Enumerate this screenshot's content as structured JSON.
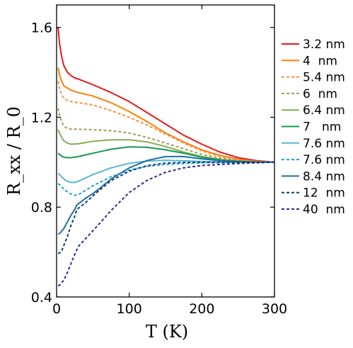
{
  "chart_data": {
    "type": "line",
    "xlabel": "T (K)",
    "ylabel": "R_xx / R_0",
    "xlim": [
      0,
      300
    ],
    "ylim": [
      0.4,
      1.7
    ],
    "xticks": [
      0,
      100,
      200,
      300
    ],
    "yticks": [
      0.4,
      0.8,
      1.2,
      1.6
    ],
    "xtick_labels": [
      "0",
      "100",
      "200",
      "300"
    ],
    "ytick_labels": [
      "0.4",
      "0.8",
      "1.2",
      "1.6"
    ],
    "grid": false,
    "legend_position": "right",
    "series": [
      {
        "name": "3.2 nm",
        "color": "#e41a1c",
        "dash": "solid",
        "points": [
          [
            2,
            1.6
          ],
          [
            4,
            1.53
          ],
          [
            7,
            1.47
          ],
          [
            10,
            1.43
          ],
          [
            15,
            1.4
          ],
          [
            20,
            1.385
          ],
          [
            25,
            1.375
          ],
          [
            30,
            1.37
          ],
          [
            50,
            1.345
          ],
          [
            75,
            1.31
          ],
          [
            100,
            1.27
          ],
          [
            125,
            1.22
          ],
          [
            150,
            1.17
          ],
          [
            175,
            1.12
          ],
          [
            200,
            1.08
          ],
          [
            225,
            1.045
          ],
          [
            250,
            1.02
          ],
          [
            275,
            1.007
          ],
          [
            300,
            1.0
          ]
        ]
      },
      {
        "name": "4  nm",
        "color": "#ff7f00",
        "dash": "solid",
        "points": [
          [
            2,
            1.42
          ],
          [
            4,
            1.39
          ],
          [
            7,
            1.36
          ],
          [
            10,
            1.34
          ],
          [
            15,
            1.33
          ],
          [
            20,
            1.32
          ],
          [
            30,
            1.31
          ],
          [
            50,
            1.295
          ],
          [
            75,
            1.265
          ],
          [
            100,
            1.225
          ],
          [
            125,
            1.18
          ],
          [
            150,
            1.13
          ],
          [
            175,
            1.09
          ],
          [
            200,
            1.055
          ],
          [
            225,
            1.03
          ],
          [
            250,
            1.013
          ],
          [
            275,
            1.004
          ],
          [
            300,
            1.0
          ]
        ]
      },
      {
        "name": "5.4 nm",
        "color": "#fd8d3c",
        "dash": "dashed",
        "points": [
          [
            2,
            1.36
          ],
          [
            4,
            1.33
          ],
          [
            7,
            1.3
          ],
          [
            10,
            1.285
          ],
          [
            15,
            1.275
          ],
          [
            20,
            1.27
          ],
          [
            30,
            1.265
          ],
          [
            50,
            1.255
          ],
          [
            75,
            1.23
          ],
          [
            100,
            1.2
          ],
          [
            125,
            1.165
          ],
          [
            150,
            1.125
          ],
          [
            175,
            1.085
          ],
          [
            200,
            1.05
          ],
          [
            225,
            1.025
          ],
          [
            250,
            1.01
          ],
          [
            275,
            1.003
          ],
          [
            300,
            1.0
          ]
        ]
      },
      {
        "name": "6  nm",
        "color": "#a19a5c",
        "dash": "dashed",
        "points": [
          [
            2,
            1.24
          ],
          [
            4,
            1.21
          ],
          [
            7,
            1.18
          ],
          [
            10,
            1.16
          ],
          [
            15,
            1.15
          ],
          [
            20,
            1.147
          ],
          [
            30,
            1.147
          ],
          [
            50,
            1.145
          ],
          [
            75,
            1.14
          ],
          [
            100,
            1.13
          ],
          [
            125,
            1.11
          ],
          [
            150,
            1.085
          ],
          [
            175,
            1.06
          ],
          [
            200,
            1.035
          ],
          [
            225,
            1.018
          ],
          [
            250,
            1.007
          ],
          [
            275,
            1.002
          ],
          [
            300,
            1.0
          ]
        ]
      },
      {
        "name": "6.4 nm",
        "color": "#7fb04f",
        "dash": "solid",
        "points": [
          [
            2,
            1.145
          ],
          [
            4,
            1.13
          ],
          [
            7,
            1.11
          ],
          [
            10,
            1.095
          ],
          [
            15,
            1.085
          ],
          [
            20,
            1.08
          ],
          [
            30,
            1.082
          ],
          [
            50,
            1.093
          ],
          [
            75,
            1.1
          ],
          [
            100,
            1.1
          ],
          [
            125,
            1.09
          ],
          [
            150,
            1.07
          ],
          [
            175,
            1.045
          ],
          [
            200,
            1.025
          ],
          [
            225,
            1.012
          ],
          [
            250,
            1.005
          ],
          [
            275,
            1.001
          ],
          [
            300,
            1.0
          ]
        ]
      },
      {
        "name": "7   nm",
        "color": "#1a9850",
        "dash": "solid",
        "points": [
          [
            2,
            1.04
          ],
          [
            4,
            1.035
          ],
          [
            7,
            1.027
          ],
          [
            10,
            1.022
          ],
          [
            15,
            1.02
          ],
          [
            20,
            1.02
          ],
          [
            30,
            1.025
          ],
          [
            50,
            1.04
          ],
          [
            75,
            1.058
          ],
          [
            100,
            1.068
          ],
          [
            125,
            1.066
          ],
          [
            150,
            1.055
          ],
          [
            175,
            1.04
          ],
          [
            200,
            1.022
          ],
          [
            225,
            1.01
          ],
          [
            250,
            1.004
          ],
          [
            275,
            1.001
          ],
          [
            300,
            1.0
          ]
        ]
      },
      {
        "name": "7.6 nm",
        "color": "#5ab4d6",
        "dash": "solid",
        "points": [
          [
            2,
            0.95
          ],
          [
            4,
            0.945
          ],
          [
            7,
            0.935
          ],
          [
            10,
            0.925
          ],
          [
            15,
            0.915
          ],
          [
            20,
            0.91
          ],
          [
            25,
            0.91
          ],
          [
            30,
            0.915
          ],
          [
            50,
            0.945
          ],
          [
            75,
            0.975
          ],
          [
            100,
            0.995
          ],
          [
            125,
            1.005
          ],
          [
            150,
            1.008
          ],
          [
            175,
            1.006
          ],
          [
            200,
            1.003
          ],
          [
            225,
            1.001
          ],
          [
            250,
            1.0
          ],
          [
            275,
            1.0
          ],
          [
            300,
            1.0
          ]
        ]
      },
      {
        "name": "7.6 nm",
        "color": "#1aa0d8",
        "dash": "dashed",
        "points": [
          [
            2,
            0.905
          ],
          [
            4,
            0.9
          ],
          [
            7,
            0.89
          ],
          [
            10,
            0.88
          ],
          [
            15,
            0.868
          ],
          [
            20,
            0.858
          ],
          [
            25,
            0.853
          ],
          [
            30,
            0.855
          ],
          [
            50,
            0.895
          ],
          [
            75,
            0.935
          ],
          [
            100,
            0.965
          ],
          [
            125,
            0.982
          ],
          [
            150,
            0.99
          ],
          [
            175,
            0.994
          ],
          [
            200,
            0.997
          ],
          [
            225,
            0.998
          ],
          [
            250,
            0.999
          ],
          [
            275,
            1.0
          ],
          [
            300,
            1.0
          ]
        ]
      },
      {
        "name": "8.4 nm",
        "color": "#1f6f9f",
        "dash": "solid",
        "points": [
          [
            2,
            0.68
          ],
          [
            5,
            0.685
          ],
          [
            10,
            0.705
          ],
          [
            15,
            0.735
          ],
          [
            20,
            0.765
          ],
          [
            25,
            0.79
          ],
          [
            28,
            0.81
          ],
          [
            32,
            0.82
          ],
          [
            40,
            0.84
          ],
          [
            50,
            0.86
          ],
          [
            60,
            0.885
          ],
          [
            75,
            0.925
          ],
          [
            100,
            0.975
          ],
          [
            125,
            1.008
          ],
          [
            150,
            1.025
          ],
          [
            175,
            1.025
          ],
          [
            200,
            1.015
          ],
          [
            225,
            1.007
          ],
          [
            250,
            1.002
          ],
          [
            275,
            1.0
          ],
          [
            300,
            1.0
          ]
        ]
      },
      {
        "name": "12  nm",
        "color": "#0f3d6e",
        "dash": "dashed",
        "points": [
          [
            2,
            0.595
          ],
          [
            4,
            0.595
          ],
          [
            7,
            0.605
          ],
          [
            10,
            0.63
          ],
          [
            15,
            0.67
          ],
          [
            20,
            0.72
          ],
          [
            25,
            0.76
          ],
          [
            28,
            0.79
          ],
          [
            32,
            0.8
          ],
          [
            40,
            0.82
          ],
          [
            50,
            0.85
          ],
          [
            60,
            0.878
          ],
          [
            75,
            0.918
          ],
          [
            100,
            0.96
          ],
          [
            125,
            0.985
          ],
          [
            150,
            0.996
          ],
          [
            175,
            0.999
          ],
          [
            200,
            1.0
          ],
          [
            225,
            1.0
          ],
          [
            250,
            1.0
          ],
          [
            275,
            1.0
          ],
          [
            300,
            1.0
          ]
        ]
      },
      {
        "name": "40  nm",
        "color": "#2e2b96",
        "dash": "dashed",
        "points": [
          [
            2,
            0.45
          ],
          [
            5,
            0.455
          ],
          [
            10,
            0.475
          ],
          [
            15,
            0.51
          ],
          [
            20,
            0.55
          ],
          [
            25,
            0.59
          ],
          [
            30,
            0.625
          ],
          [
            40,
            0.66
          ],
          [
            50,
            0.695
          ],
          [
            60,
            0.73
          ],
          [
            75,
            0.785
          ],
          [
            100,
            0.865
          ],
          [
            125,
            0.92
          ],
          [
            150,
            0.955
          ],
          [
            175,
            0.975
          ],
          [
            200,
            0.985
          ],
          [
            225,
            0.99
          ],
          [
            250,
            0.994
          ],
          [
            275,
            0.997
          ],
          [
            300,
            1.0
          ]
        ]
      }
    ]
  }
}
